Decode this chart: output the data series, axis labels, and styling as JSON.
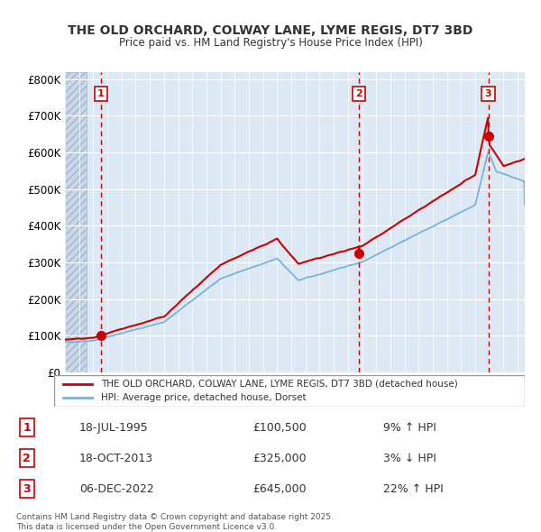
{
  "title1": "THE OLD ORCHARD, COLWAY LANE, LYME REGIS, DT7 3BD",
  "title2": "Price paid vs. HM Land Registry's House Price Index (HPI)",
  "ylabel": "",
  "bg_color": "#dce9f5",
  "plot_bg": "#dce9f5",
  "line1_color": "#cc0000",
  "line2_color": "#7ab3d4",
  "sale_marker_color": "#cc0000",
  "vline_color": "#cc0000",
  "ytick_labels": [
    "£0",
    "£100K",
    "£200K",
    "£300K",
    "£400K",
    "£500K",
    "£600K",
    "£700K",
    "£800K"
  ],
  "ytick_values": [
    0,
    100000,
    200000,
    300000,
    400000,
    500000,
    600000,
    700000,
    800000
  ],
  "ylim": [
    0,
    820000
  ],
  "xlim_start": 1993.0,
  "xlim_end": 2025.5,
  "sales": [
    {
      "num": 1,
      "date_num": 1995.54,
      "price": 100500,
      "label": "18-JUL-1995",
      "amount": "£100,500",
      "pct": "9% ↑ HPI"
    },
    {
      "num": 2,
      "date_num": 2013.79,
      "price": 325000,
      "label": "18-OCT-2013",
      "amount": "£325,000",
      "pct": "3% ↓ HPI"
    },
    {
      "num": 3,
      "date_num": 2022.92,
      "price": 645000,
      "label": "06-DEC-2022",
      "amount": "£645,000",
      "pct": "22% ↑ HPI"
    }
  ],
  "legend1": "THE OLD ORCHARD, COLWAY LANE, LYME REGIS, DT7 3BD (detached house)",
  "legend2": "HPI: Average price, detached house, Dorset",
  "footnote": "Contains HM Land Registry data © Crown copyright and database right 2025.\nThis data is licensed under the Open Government Licence v3.0.",
  "hatch_color": "#b0c4d8",
  "grid_color": "#ffffff"
}
